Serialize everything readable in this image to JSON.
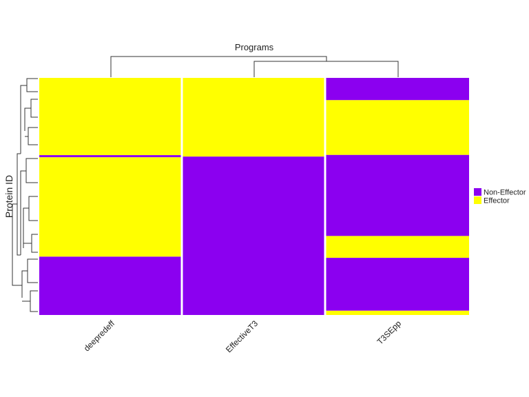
{
  "chart_data": {
    "type": "heatmap",
    "title": "Programs",
    "ylabel": "Protein ID",
    "xlabel": "",
    "columns": [
      "deepredeff",
      "EffectiveT3",
      "T3SEpp"
    ],
    "categories": [
      "Non-Effector",
      "Effector"
    ],
    "colors": {
      "Non-Effector": "#8b00f0",
      "Effector": "#ffff00"
    },
    "legend": {
      "position": "right",
      "entries": [
        "Non-Effector",
        "Effector"
      ]
    },
    "row_segments": {
      "deepredeff": [
        {
          "from": 0.0,
          "to": 0.326,
          "class": "Effector"
        },
        {
          "from": 0.326,
          "to": 0.335,
          "class": "Non-Effector"
        },
        {
          "from": 0.335,
          "to": 0.754,
          "class": "Effector"
        },
        {
          "from": 0.754,
          "to": 1.0,
          "class": "Non-Effector"
        }
      ],
      "EffectiveT3": [
        {
          "from": 0.0,
          "to": 0.332,
          "class": "Effector"
        },
        {
          "from": 0.332,
          "to": 1.0,
          "class": "Non-Effector"
        }
      ],
      "T3SEpp": [
        {
          "from": 0.0,
          "to": 0.094,
          "class": "Non-Effector"
        },
        {
          "from": 0.094,
          "to": 0.325,
          "class": "Effector"
        },
        {
          "from": 0.325,
          "to": 0.667,
          "class": "Non-Effector"
        },
        {
          "from": 0.667,
          "to": 0.759,
          "class": "Effector"
        },
        {
          "from": 0.759,
          "to": 0.982,
          "class": "Non-Effector"
        },
        {
          "from": 0.982,
          "to": 1.0,
          "class": "Effector"
        }
      ]
    },
    "column_dendrogram": "(deepredeff,(EffectiveT3,T3SEpp))",
    "row_dendrogram": true
  }
}
